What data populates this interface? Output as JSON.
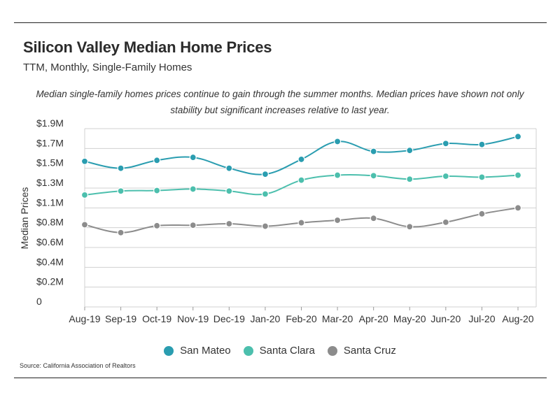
{
  "header": {
    "title": "Silicon Valley Median Home Prices",
    "subtitle": "TTM, Monthly, Single-Family Homes"
  },
  "annotation": "Median single-family homes prices continue to gain through the summer months. Median prices have shown not only stability but significant increases relative to last year.",
  "source": "Source:  California Association of Realtors",
  "colors": {
    "san_mateo": "#2a9db0",
    "santa_clara": "#4cbfad",
    "santa_cruz": "#8c8c8c",
    "grid": "#d0d0d0"
  },
  "chart_data": {
    "type": "line",
    "title": "Silicon Valley Median Home Prices",
    "subtitle": "TTM, Monthly, Single-Family Homes",
    "xlabel": "",
    "ylabel": "Median Prices",
    "categories": [
      "Aug-19",
      "Sep-19",
      "Oct-19",
      "Nov-19",
      "Dec-19",
      "Jan-20",
      "Feb-20",
      "Mar-20",
      "Apr-20",
      "May-20",
      "Jun-20",
      "Jul-20",
      "Aug-20"
    ],
    "y_tick_labels": [
      "0",
      "$0.2M",
      "$0.4M",
      "$0.6M",
      "$0.8M",
      "$1.1M",
      "$1.3M",
      "$1.5M",
      "$1.7M",
      "$1.9M"
    ],
    "ylim": [
      0,
      1.8
    ],
    "grid": true,
    "legend_position": "bottom",
    "series": [
      {
        "name": "San Mateo",
        "values": [
          1.47,
          1.4,
          1.48,
          1.51,
          1.4,
          1.34,
          1.49,
          1.67,
          1.57,
          1.58,
          1.65,
          1.64,
          1.72
        ]
      },
      {
        "name": "Santa Clara",
        "values": [
          1.13,
          1.17,
          1.175,
          1.19,
          1.17,
          1.14,
          1.28,
          1.33,
          1.325,
          1.29,
          1.32,
          1.31,
          1.33
        ]
      },
      {
        "name": "Santa Cruz",
        "values": [
          0.83,
          0.75,
          0.82,
          0.825,
          0.84,
          0.815,
          0.85,
          0.875,
          0.895,
          0.81,
          0.855,
          0.94,
          1.0
        ]
      }
    ]
  }
}
